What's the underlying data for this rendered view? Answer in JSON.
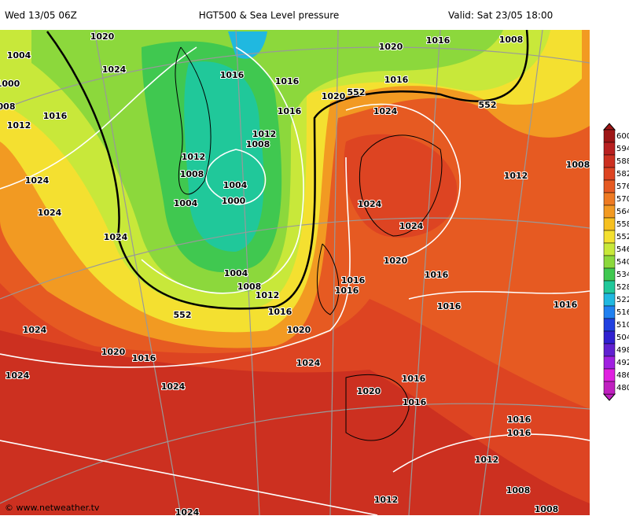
{
  "header": {
    "run": "Wed 13/05 06Z",
    "title": "HGT500 & Sea Level pressure",
    "valid": "Valid: Sat 23/05 18:00"
  },
  "footer": {
    "credit": "© www.netweather.tv"
  },
  "colorbar": {
    "values": [
      600,
      594,
      588,
      582,
      576,
      570,
      564,
      558,
      552,
      546,
      540,
      534,
      528,
      522,
      516,
      510,
      504,
      498,
      492,
      486,
      480
    ],
    "colors": [
      "#9e1616",
      "#b82020",
      "#cc3020",
      "#dd4422",
      "#e65a22",
      "#ee7a22",
      "#f29a22",
      "#f6c020",
      "#f4e030",
      "#c8e83a",
      "#8cd83c",
      "#40c850",
      "#20c89a",
      "#20b8e0",
      "#2080f0",
      "#2040e0",
      "#3020d0",
      "#6020d0",
      "#a020e0",
      "#e020e0",
      "#c020c0"
    ]
  },
  "map": {
    "labels": [
      "1020",
      "1004",
      "1024",
      "1000",
      "008",
      "1012",
      "1016",
      "1016",
      "1016",
      "1016",
      "1020",
      "552",
      "1024",
      "1016",
      "1020",
      "1016",
      "1008",
      "552",
      "1012",
      "1008",
      "1012",
      "1008",
      "1004",
      "1000",
      "1004",
      "1024",
      "1024",
      "1024",
      "1024",
      "1024",
      "1020",
      "1016",
      "1016",
      "1016",
      "1016",
      "1016",
      "1012",
      "1008",
      "1004",
      "1008",
      "1012",
      "552",
      "1016",
      "1020",
      "1024",
      "1020",
      "1016",
      "1024",
      "1024",
      "1024",
      "1020",
      "1016",
      "1016",
      "1016",
      "1016",
      "1012",
      "1008",
      "1012",
      "1008",
      "1024"
    ]
  }
}
